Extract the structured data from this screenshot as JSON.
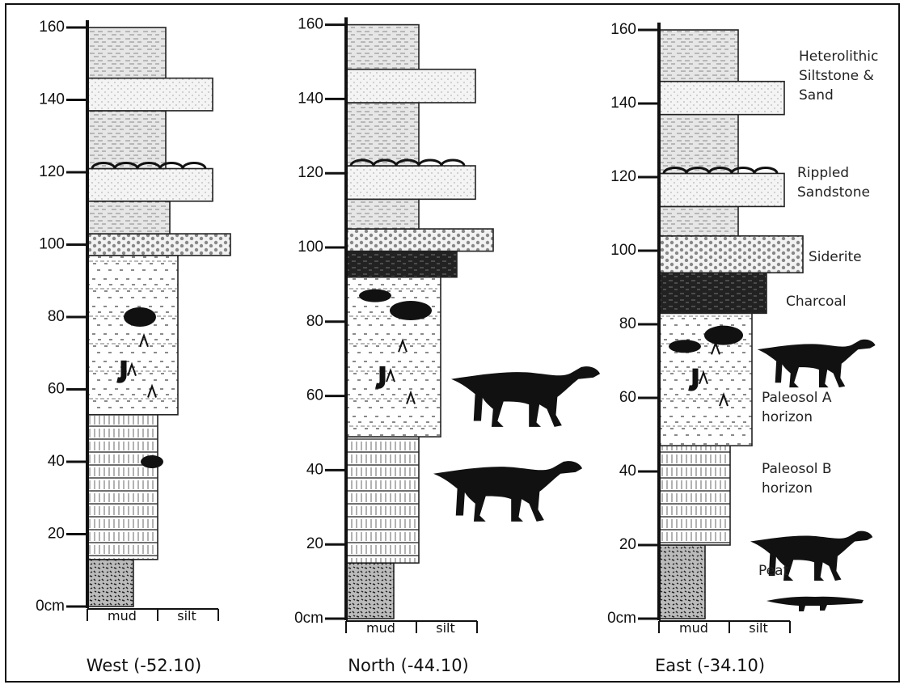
{
  "columns": [
    {
      "title": "West (-52.10)",
      "ticks": [
        160,
        140,
        120,
        100,
        80,
        60,
        40,
        20,
        "0cm"
      ],
      "grain_labels": [
        "mud",
        "silt"
      ]
    },
    {
      "title": "North (-44.10)",
      "ticks": [
        160,
        140,
        120,
        100,
        80,
        60,
        40,
        20,
        "0cm"
      ],
      "grain_labels": [
        "mud",
        "silt"
      ]
    },
    {
      "title": "East (-34.10)",
      "ticks": [
        160,
        140,
        120,
        100,
        80,
        60,
        40,
        20,
        "0cm"
      ],
      "grain_labels": [
        "mud",
        "silt"
      ]
    }
  ],
  "labels": [
    "Heterolithic Siltstone & Sand",
    "Rippled Sandstone",
    "Siderite",
    "Charcoal",
    "Paleosol A horizon",
    "Paleosol B horizon",
    "Peat"
  ]
}
